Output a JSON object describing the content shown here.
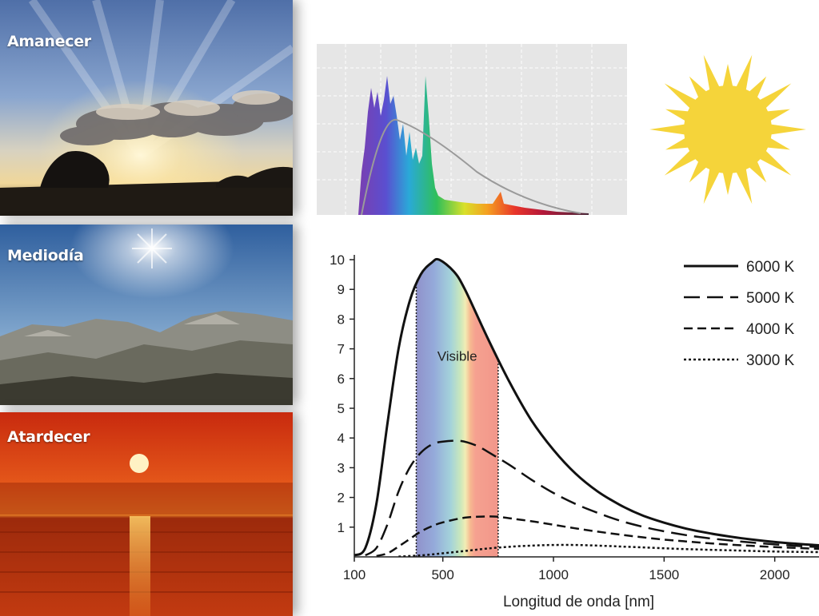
{
  "photos": [
    {
      "label": "Amanecer"
    },
    {
      "label": "Mediodía"
    },
    {
      "label": "Atardecer"
    }
  ],
  "chart_data": {
    "type": "line",
    "xlabel": "Longitud de onda [nm]",
    "ylabel": "",
    "title": "",
    "xlim": [
      100,
      2200
    ],
    "ylim": [
      0,
      10
    ],
    "x_ticks": [
      100,
      500,
      1000,
      1500,
      2000
    ],
    "y_ticks": [
      1,
      2,
      3,
      4,
      5,
      6,
      7,
      8,
      9,
      10
    ],
    "legend_position": "top-right",
    "annotation": "Visible",
    "visible_band": [
      380,
      750
    ],
    "series": [
      {
        "name": "6000 K",
        "style": "solid",
        "points": [
          [
            100,
            0.05
          ],
          [
            150,
            0.3
          ],
          [
            200,
            1.8
          ],
          [
            250,
            4.5
          ],
          [
            300,
            7.0
          ],
          [
            350,
            8.6
          ],
          [
            400,
            9.5
          ],
          [
            450,
            9.9
          ],
          [
            483,
            10.0
          ],
          [
            550,
            9.6
          ],
          [
            600,
            9.0
          ],
          [
            700,
            7.4
          ],
          [
            800,
            5.9
          ],
          [
            900,
            4.6
          ],
          [
            1000,
            3.6
          ],
          [
            1100,
            2.8
          ],
          [
            1200,
            2.2
          ],
          [
            1300,
            1.75
          ],
          [
            1400,
            1.4
          ],
          [
            1500,
            1.15
          ],
          [
            1600,
            0.95
          ],
          [
            1700,
            0.8
          ],
          [
            1800,
            0.68
          ],
          [
            1900,
            0.58
          ],
          [
            2000,
            0.5
          ],
          [
            2100,
            0.44
          ],
          [
            2200,
            0.39
          ]
        ]
      },
      {
        "name": "5000 K",
        "style": "long-dash",
        "points": [
          [
            150,
            0.05
          ],
          [
            200,
            0.3
          ],
          [
            250,
            1.1
          ],
          [
            300,
            2.2
          ],
          [
            350,
            3.0
          ],
          [
            400,
            3.5
          ],
          [
            450,
            3.78
          ],
          [
            500,
            3.88
          ],
          [
            580,
            3.9
          ],
          [
            650,
            3.75
          ],
          [
            700,
            3.55
          ],
          [
            800,
            3.1
          ],
          [
            900,
            2.6
          ],
          [
            1000,
            2.15
          ],
          [
            1100,
            1.78
          ],
          [
            1200,
            1.48
          ],
          [
            1300,
            1.22
          ],
          [
            1400,
            1.02
          ],
          [
            1500,
            0.86
          ],
          [
            1600,
            0.73
          ],
          [
            1700,
            0.63
          ],
          [
            1800,
            0.55
          ],
          [
            1900,
            0.48
          ],
          [
            2000,
            0.42
          ],
          [
            2100,
            0.37
          ],
          [
            2200,
            0.33
          ]
        ]
      },
      {
        "name": "4000 K",
        "style": "dash",
        "points": [
          [
            200,
            0.03
          ],
          [
            250,
            0.12
          ],
          [
            300,
            0.35
          ],
          [
            350,
            0.6
          ],
          [
            400,
            0.85
          ],
          [
            450,
            1.03
          ],
          [
            500,
            1.16
          ],
          [
            600,
            1.32
          ],
          [
            700,
            1.36
          ],
          [
            750,
            1.35
          ],
          [
            800,
            1.3
          ],
          [
            900,
            1.2
          ],
          [
            1000,
            1.08
          ],
          [
            1100,
            0.96
          ],
          [
            1200,
            0.85
          ],
          [
            1300,
            0.75
          ],
          [
            1400,
            0.66
          ],
          [
            1500,
            0.58
          ],
          [
            1600,
            0.52
          ],
          [
            1700,
            0.46
          ],
          [
            1800,
            0.41
          ],
          [
            1900,
            0.37
          ],
          [
            2000,
            0.33
          ],
          [
            2100,
            0.3
          ],
          [
            2200,
            0.27
          ]
        ]
      },
      {
        "name": "3000 K",
        "style": "dotted",
        "points": [
          [
            300,
            0.01
          ],
          [
            400,
            0.05
          ],
          [
            500,
            0.12
          ],
          [
            600,
            0.2
          ],
          [
            700,
            0.28
          ],
          [
            800,
            0.34
          ],
          [
            900,
            0.38
          ],
          [
            1000,
            0.4
          ],
          [
            1100,
            0.4
          ],
          [
            1200,
            0.38
          ],
          [
            1300,
            0.35
          ],
          [
            1400,
            0.32
          ],
          [
            1500,
            0.29
          ],
          [
            1600,
            0.26
          ],
          [
            1700,
            0.24
          ],
          [
            1800,
            0.22
          ],
          [
            1900,
            0.2
          ],
          [
            2000,
            0.18
          ],
          [
            2100,
            0.17
          ],
          [
            2200,
            0.16
          ]
        ]
      }
    ]
  }
}
